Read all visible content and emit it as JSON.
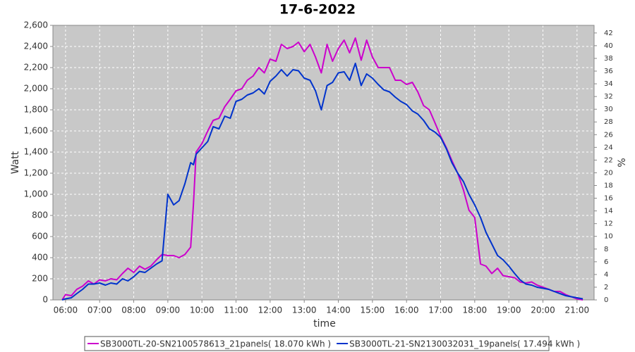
{
  "chart_data": {
    "type": "line",
    "title": "17-6-2022",
    "x_label": "time",
    "y_label": "Watt",
    "y2_label": "%",
    "grid": true,
    "x": [
      5.9,
      6,
      6.17,
      6.33,
      6.5,
      6.67,
      6.83,
      7,
      7.17,
      7.33,
      7.5,
      7.67,
      7.83,
      8,
      8.17,
      8.33,
      8.5,
      8.67,
      8.83,
      9,
      9.17,
      9.33,
      9.5,
      9.67,
      9.75,
      9.83,
      10,
      10.17,
      10.33,
      10.5,
      10.67,
      10.83,
      11,
      11.17,
      11.33,
      11.5,
      11.67,
      11.83,
      12,
      12.17,
      12.33,
      12.5,
      12.67,
      12.83,
      13,
      13.17,
      13.33,
      13.5,
      13.67,
      13.83,
      14,
      14.17,
      14.33,
      14.5,
      14.67,
      14.83,
      15,
      15.17,
      15.33,
      15.5,
      15.67,
      15.83,
      16,
      16.17,
      16.33,
      16.5,
      16.67,
      16.83,
      17,
      17.17,
      17.33,
      17.5,
      17.67,
      17.83,
      18,
      18.17,
      18.33,
      18.5,
      18.67,
      18.83,
      19,
      19.17,
      19.33,
      19.5,
      19.67,
      19.83,
      20,
      20.17,
      20.33,
      20.5,
      20.67,
      20.83,
      21,
      21.17
    ],
    "series": [
      {
        "name": "SB3000TL-20-SN2100578613_21panels( 18.070 kWh )",
        "color": "#cc00cc",
        "values": [
          0,
          50,
          40,
          100,
          130,
          180,
          150,
          190,
          180,
          200,
          190,
          250,
          300,
          260,
          320,
          290,
          320,
          380,
          430,
          420,
          420,
          400,
          430,
          500,
          900,
          1400,
          1480,
          1600,
          1700,
          1720,
          1830,
          1900,
          1980,
          2000,
          2080,
          2120,
          2200,
          2150,
          2280,
          2260,
          2420,
          2380,
          2400,
          2440,
          2350,
          2420,
          2300,
          2150,
          2420,
          2260,
          2380,
          2460,
          2340,
          2480,
          2270,
          2460,
          2300,
          2200,
          2200,
          2200,
          2080,
          2080,
          2040,
          2060,
          1970,
          1840,
          1800,
          1680,
          1550,
          1440,
          1320,
          1200,
          1040,
          850,
          780,
          340,
          320,
          250,
          300,
          230,
          220,
          210,
          170,
          160,
          170,
          140,
          120,
          100,
          80,
          80,
          50,
          30,
          10,
          0
        ]
      },
      {
        "name": "SB3000TL-21-SN2130032031_19panels( 17.494 kWh )",
        "color": "#0033cc",
        "values": [
          0,
          10,
          20,
          60,
          100,
          150,
          150,
          160,
          140,
          160,
          150,
          200,
          180,
          220,
          270,
          260,
          300,
          340,
          370,
          1000,
          900,
          940,
          1100,
          1300,
          1280,
          1380,
          1440,
          1500,
          1640,
          1620,
          1740,
          1720,
          1880,
          1900,
          1940,
          1960,
          2000,
          1950,
          2070,
          2120,
          2180,
          2120,
          2180,
          2170,
          2100,
          2080,
          1980,
          1800,
          2030,
          2060,
          2150,
          2160,
          2080,
          2240,
          2030,
          2140,
          2100,
          2040,
          1990,
          1970,
          1920,
          1880,
          1850,
          1790,
          1760,
          1700,
          1620,
          1590,
          1540,
          1430,
          1300,
          1200,
          1120,
          1000,
          900,
          780,
          640,
          530,
          420,
          380,
          320,
          250,
          190,
          150,
          140,
          120,
          110,
          100,
          80,
          60,
          40,
          30,
          20,
          10
        ]
      }
    ],
    "xlim": [
      5.63,
      21.5
    ],
    "xticks": [
      {
        "value": 6,
        "label": "06:00"
      },
      {
        "value": 7,
        "label": "07:00"
      },
      {
        "value": 8,
        "label": "08:00"
      },
      {
        "value": 9,
        "label": "09:00"
      },
      {
        "value": 10,
        "label": "10:00"
      },
      {
        "value": 11,
        "label": "11:00"
      },
      {
        "value": 12,
        "label": "12:00"
      },
      {
        "value": 13,
        "label": "13:00"
      },
      {
        "value": 14,
        "label": "14:00"
      },
      {
        "value": 15,
        "label": "15:00"
      },
      {
        "value": 16,
        "label": "16:00"
      },
      {
        "value": 17,
        "label": "17:00"
      },
      {
        "value": 18,
        "label": "18:00"
      },
      {
        "value": 19,
        "label": "19:00"
      },
      {
        "value": 20,
        "label": "20:00"
      },
      {
        "value": 21,
        "label": "21:00"
      }
    ],
    "ylim": [
      0,
      2600
    ],
    "yticks": [
      0,
      200,
      400,
      600,
      800,
      {
        "value": 1000,
        "label": "1,000"
      },
      {
        "value": 1200,
        "label": "1,200"
      },
      {
        "value": 1400,
        "label": "1,400"
      },
      {
        "value": 1600,
        "label": "1,600"
      },
      {
        "value": 1800,
        "label": "1,800"
      },
      {
        "value": 2000,
        "label": "2,000"
      },
      {
        "value": 2200,
        "label": "2,200"
      },
      {
        "value": 2400,
        "label": "2,400"
      },
      {
        "value": 2600,
        "label": "2,600"
      }
    ],
    "y2lim": [
      0,
      43.2
    ],
    "y2ticks": [
      0,
      2,
      4,
      6,
      8,
      10,
      12,
      14,
      16,
      18,
      20,
      22,
      24,
      26,
      28,
      30,
      32,
      34,
      36,
      38,
      40,
      42
    ]
  }
}
